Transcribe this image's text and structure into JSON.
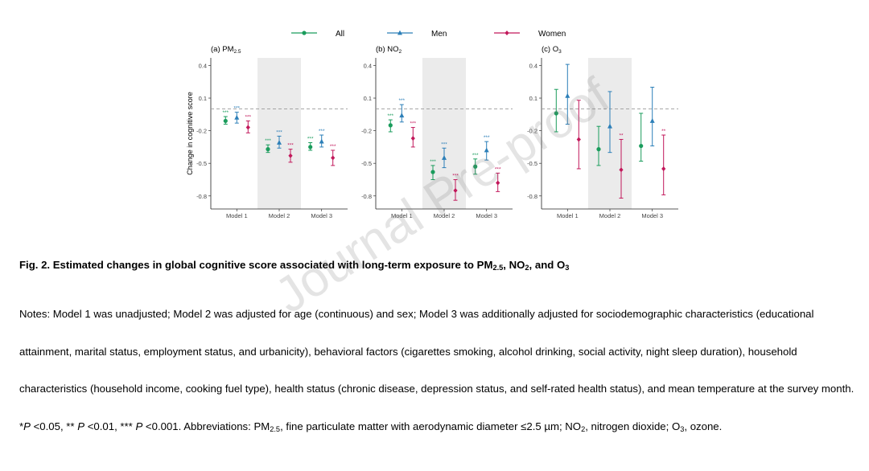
{
  "chart_data": {
    "type": "errorbar",
    "legend": {
      "position": "top",
      "entries": [
        {
          "name": "All",
          "color": "#1a9c5c",
          "marker": "circle"
        },
        {
          "name": "Men",
          "color": "#2c7fb8",
          "marker": "triangle"
        },
        {
          "name": "Women",
          "color": "#c2185b",
          "marker": "diamond"
        }
      ]
    },
    "ylabel": "Change in cognitive score",
    "ylim": [
      -0.92,
      0.47
    ],
    "yticks": [
      0.4,
      0.1,
      -0.2,
      -0.5,
      -0.8
    ],
    "ytick_labels": [
      "0.4",
      "0.1",
      "-0.2",
      "-0.5",
      "-0.8"
    ],
    "reference_line": 0.0,
    "categories": [
      "Model 1",
      "Model 2",
      "Model 3"
    ],
    "shaded_category": "Model 2",
    "panels": [
      {
        "title_prefix": "(a) PM",
        "title_sub": "2.5",
        "series": [
          {
            "name": "All",
            "estimate": [
              -0.11,
              -0.37,
              -0.35
            ],
            "lower": [
              -0.14,
              -0.4,
              -0.38
            ],
            "upper": [
              -0.07,
              -0.33,
              -0.31
            ],
            "sig": [
              "***",
              "***",
              "***"
            ]
          },
          {
            "name": "Men",
            "estimate": [
              -0.08,
              -0.31,
              -0.3
            ],
            "lower": [
              -0.13,
              -0.36,
              -0.35
            ],
            "upper": [
              -0.03,
              -0.25,
              -0.24
            ],
            "sig": [
              "***",
              "***",
              "***"
            ]
          },
          {
            "name": "Women",
            "estimate": [
              -0.17,
              -0.43,
              -0.45
            ],
            "lower": [
              -0.22,
              -0.49,
              -0.52
            ],
            "upper": [
              -0.11,
              -0.37,
              -0.38
            ],
            "sig": [
              "***",
              "***",
              "***"
            ]
          }
        ]
      },
      {
        "title_prefix": "(b) NO",
        "title_sub": "2",
        "series": [
          {
            "name": "All",
            "estimate": [
              -0.15,
              -0.58,
              -0.53
            ],
            "lower": [
              -0.21,
              -0.65,
              -0.6
            ],
            "upper": [
              -0.1,
              -0.52,
              -0.46
            ],
            "sig": [
              "***",
              "***",
              "***"
            ]
          },
          {
            "name": "Men",
            "estimate": [
              -0.06,
              -0.45,
              -0.38
            ],
            "lower": [
              -0.12,
              -0.54,
              -0.47
            ],
            "upper": [
              0.04,
              -0.36,
              -0.3
            ],
            "sig": [
              "***",
              "***",
              "***"
            ]
          },
          {
            "name": "Women",
            "estimate": [
              -0.27,
              -0.75,
              -0.68
            ],
            "lower": [
              -0.35,
              -0.84,
              -0.76
            ],
            "upper": [
              -0.17,
              -0.65,
              -0.59
            ],
            "sig": [
              "***",
              "***",
              "***"
            ]
          }
        ]
      },
      {
        "title_prefix": "(c) O",
        "title_sub": "3",
        "series": [
          {
            "name": "All",
            "estimate": [
              -0.04,
              -0.37,
              -0.34
            ],
            "lower": [
              -0.21,
              -0.52,
              -0.48
            ],
            "upper": [
              0.18,
              -0.16,
              -0.04
            ],
            "sig": [
              "",
              "",
              ""
            ]
          },
          {
            "name": "Men",
            "estimate": [
              0.12,
              -0.16,
              -0.11
            ],
            "lower": [
              -0.14,
              -0.4,
              -0.34
            ],
            "upper": [
              0.41,
              0.16,
              0.2
            ],
            "sig": [
              "",
              "",
              ""
            ]
          },
          {
            "name": "Women",
            "estimate": [
              -0.28,
              -0.56,
              -0.55
            ],
            "lower": [
              -0.55,
              -0.82,
              -0.79
            ],
            "upper": [
              0.08,
              -0.28,
              -0.24
            ],
            "sig": [
              "",
              "**",
              "**"
            ]
          }
        ]
      }
    ]
  },
  "caption": {
    "part1": "Fig. 2. Estimated changes in global cognitive score associated with long-term exposure to PM",
    "sub1": "2.5",
    "part2": ", NO",
    "sub2": "2",
    "part3": ", and O",
    "sub3": "3"
  },
  "notes": {
    "t1": "Notes: Model 1 was unadjusted; Model 2 was adjusted for age (continuous) and sex; Model 3 was additionally adjusted for sociodemographic characteristics (educational attainment, marital status, employment status, and urbanicity), behavioral factors (cigarettes smoking, alcohol drinking, social activity, night sleep duration), household characteristics (household income, cooking fuel type), health status (chronic disease, depression status, and self-rated health status), and mean temperature at the survey month. *",
    "p1": "P",
    "t2": " <0.05, ** ",
    "p2": "P",
    "t3": " <0.01, *** ",
    "p3": "P",
    "t4": " <0.001. Abbreviations: PM",
    "s1": "2.5",
    "t5": ", fine particulate matter with aerodynamic diameter ≤2.5 µm; NO",
    "s2": "2",
    "t6": ", nitrogen dioxide; O",
    "s3": "3",
    "t7": ", ozone."
  },
  "watermark": "Journal Pre-proof"
}
